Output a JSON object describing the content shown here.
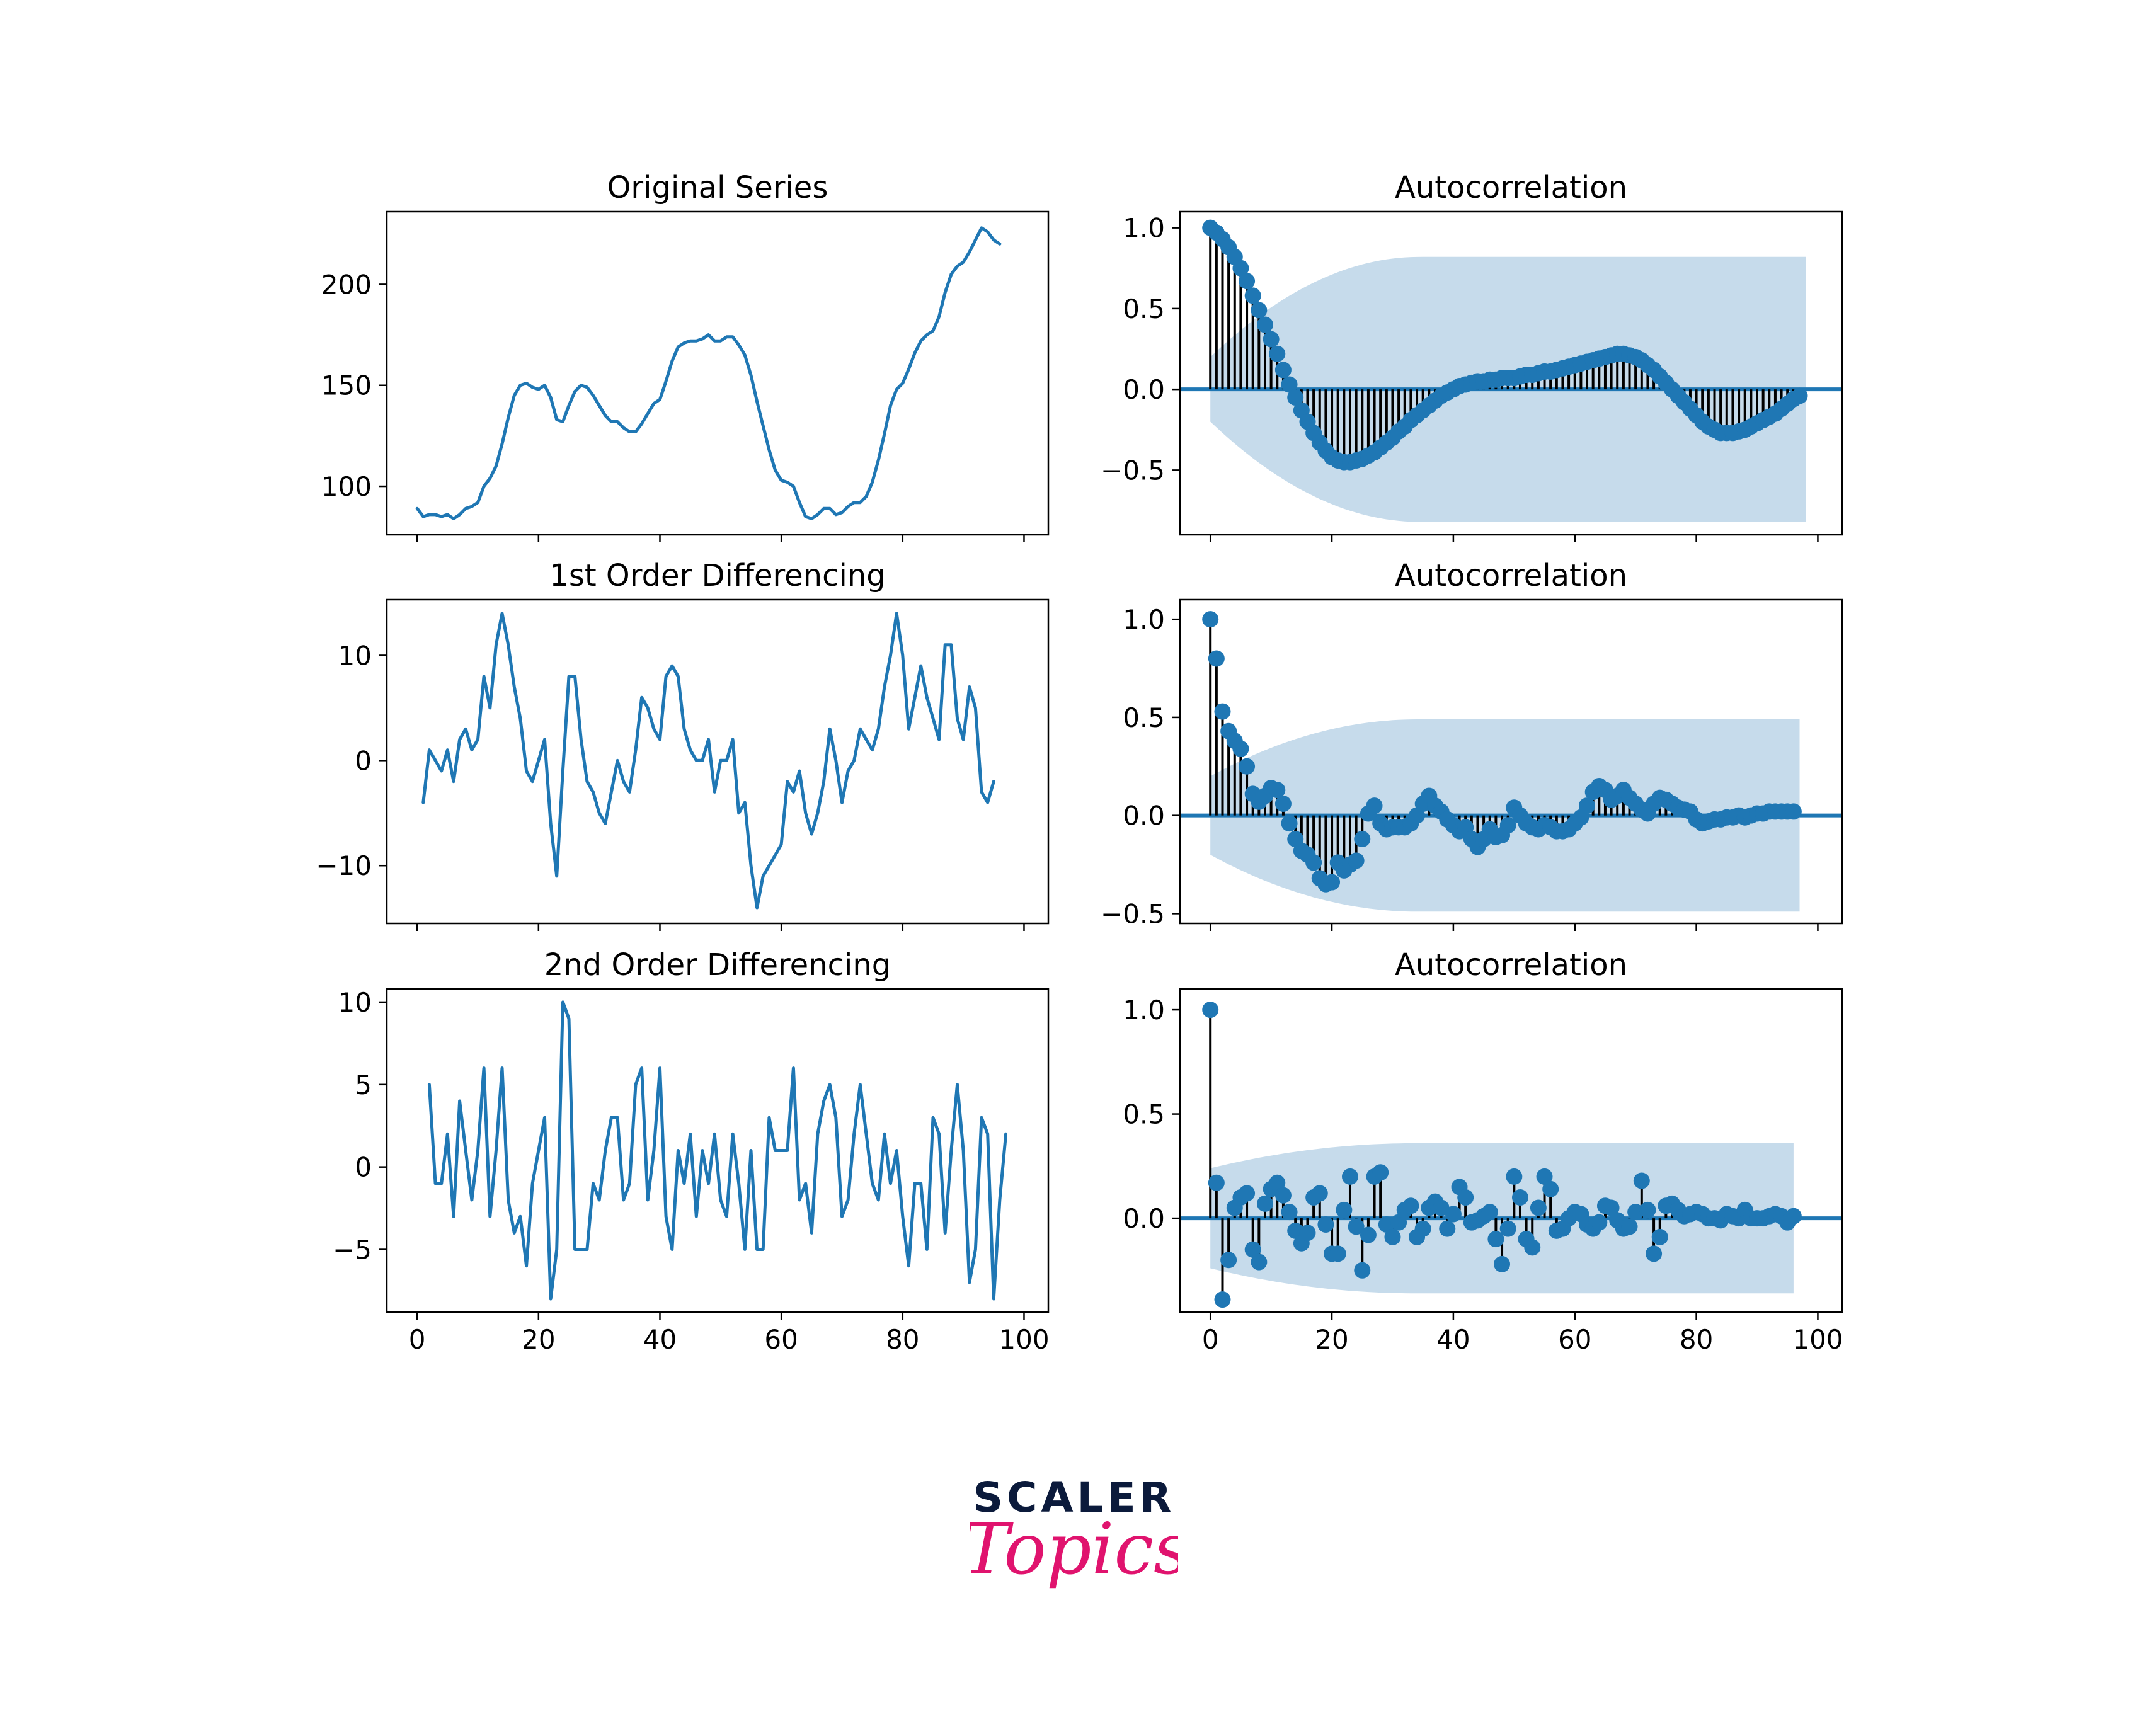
{
  "chart_data": [
    {
      "type": "line",
      "title": "Original Series",
      "xlim": [
        -5,
        104
      ],
      "ylim": [
        76,
        236
      ],
      "xticks": [
        0,
        20,
        40,
        60,
        80,
        100
      ],
      "yticks": [
        100,
        150,
        200
      ],
      "ytick_labels": [
        "100",
        "150",
        "200"
      ],
      "show_xtick_labels": false,
      "color": "#1f77b4",
      "x_start": 0,
      "values": [
        89,
        85,
        86,
        86,
        85,
        86,
        84,
        86,
        89,
        90,
        92,
        100,
        104,
        110,
        121,
        134,
        145,
        150,
        151,
        149,
        148,
        150,
        144,
        133,
        132,
        140,
        147,
        150,
        149,
        145,
        140,
        135,
        132,
        132,
        129,
        127,
        127,
        131,
        136,
        141,
        143,
        152,
        162,
        169,
        171,
        172,
        172,
        173,
        175,
        172,
        172,
        174,
        174,
        170,
        165,
        155,
        142,
        130,
        118,
        108,
        103,
        102,
        100,
        92,
        85,
        84,
        86,
        89,
        89,
        86,
        87,
        90,
        92,
        92,
        95,
        102,
        113,
        126,
        140,
        148,
        151,
        158,
        166,
        172,
        175,
        177,
        184,
        196,
        205,
        209,
        211,
        216,
        222,
        228,
        226,
        222,
        220
      ]
    },
    {
      "type": "stem",
      "title": "Autocorrelation",
      "xlim": [
        -5,
        104
      ],
      "ylim": [
        -0.9,
        1.1
      ],
      "xticks": [
        0,
        20,
        40,
        60,
        80,
        100
      ],
      "yticks": [
        -0.5,
        0.0,
        0.5,
        1.0
      ],
      "ytick_labels": [
        "−0.5",
        "0.0",
        "0.5",
        "1.0"
      ],
      "show_xtick_labels": false,
      "color": "#1f77b4",
      "confidence_band": {
        "x_end": 98.5,
        "upper_start": 0.2,
        "upper_end": 0.82,
        "color": "#c6dbeb"
      },
      "values": [
        1.0,
        0.97,
        0.93,
        0.88,
        0.82,
        0.75,
        0.67,
        0.58,
        0.49,
        0.4,
        0.31,
        0.22,
        0.12,
        0.03,
        -0.05,
        -0.13,
        -0.2,
        -0.27,
        -0.33,
        -0.38,
        -0.42,
        -0.44,
        -0.45,
        -0.45,
        -0.44,
        -0.43,
        -0.41,
        -0.39,
        -0.36,
        -0.33,
        -0.3,
        -0.26,
        -0.23,
        -0.19,
        -0.16,
        -0.13,
        -0.1,
        -0.07,
        -0.04,
        -0.02,
        0.0,
        0.02,
        0.03,
        0.04,
        0.05,
        0.05,
        0.06,
        0.06,
        0.07,
        0.07,
        0.07,
        0.08,
        0.09,
        0.09,
        0.1,
        0.11,
        0.11,
        0.12,
        0.13,
        0.14,
        0.15,
        0.16,
        0.17,
        0.18,
        0.19,
        0.2,
        0.21,
        0.22,
        0.22,
        0.21,
        0.2,
        0.18,
        0.15,
        0.12,
        0.08,
        0.04,
        0.0,
        -0.04,
        -0.08,
        -0.12,
        -0.16,
        -0.2,
        -0.23,
        -0.25,
        -0.27,
        -0.27,
        -0.27,
        -0.26,
        -0.25,
        -0.23,
        -0.21,
        -0.19,
        -0.17,
        -0.15,
        -0.12,
        -0.09,
        -0.06,
        -0.04
      ]
    },
    {
      "type": "line",
      "title": "1st Order Differencing",
      "xlim": [
        -5,
        104
      ],
      "ylim": [
        -15.5,
        15.3
      ],
      "xticks": [
        0,
        20,
        40,
        60,
        80,
        100
      ],
      "yticks": [
        -10,
        0,
        10
      ],
      "ytick_labels": [
        "−10",
        "0",
        "10"
      ],
      "show_xtick_labels": false,
      "color": "#1f77b4",
      "x_start": 1,
      "values": [
        -4,
        1,
        0,
        -1,
        1,
        -2,
        2,
        3,
        1,
        2,
        8,
        5,
        11,
        14,
        11,
        7,
        4,
        -1,
        -2,
        0,
        2,
        -6,
        -11,
        -1,
        8,
        8,
        2,
        -2,
        -3,
        -5,
        -6,
        -3,
        0,
        -2,
        -3,
        1,
        6,
        5,
        3,
        2,
        8,
        9,
        8,
        3,
        1,
        0,
        0,
        2,
        -3,
        0,
        0,
        2,
        -5,
        -4,
        -10,
        -14,
        -11,
        -10,
        -9,
        -8,
        -2,
        -3,
        -1,
        -5,
        -7,
        -5,
        -2,
        3,
        0,
        -4,
        -1,
        0,
        3,
        2,
        1,
        3,
        7,
        10,
        14,
        10,
        3,
        6,
        9,
        6,
        4,
        2,
        11,
        11,
        4,
        2,
        7,
        5,
        -3,
        -4,
        -2
      ]
    },
    {
      "type": "stem",
      "title": "Autocorrelation",
      "xlim": [
        -5,
        104
      ],
      "ylim": [
        -0.55,
        1.1
      ],
      "xticks": [
        0,
        20,
        40,
        60,
        80,
        100
      ],
      "yticks": [
        -0.5,
        0.0,
        0.5,
        1.0
      ],
      "ytick_labels": [
        "−0.5",
        "0.0",
        "0.5",
        "1.0"
      ],
      "show_xtick_labels": false,
      "color": "#1f77b4",
      "confidence_band": {
        "x_end": 97.5,
        "upper_start": 0.2,
        "upper_end": 0.49,
        "color": "#c6dbeb"
      },
      "values": [
        1.0,
        0.8,
        0.53,
        0.43,
        0.38,
        0.34,
        0.25,
        0.11,
        0.07,
        0.1,
        0.14,
        0.13,
        0.06,
        -0.04,
        -0.12,
        -0.18,
        -0.2,
        -0.24,
        -0.32,
        -0.35,
        -0.34,
        -0.24,
        -0.28,
        -0.25,
        -0.23,
        -0.12,
        0.01,
        0.05,
        -0.04,
        -0.07,
        -0.06,
        -0.06,
        -0.06,
        -0.04,
        0.0,
        0.06,
        0.1,
        0.05,
        0.02,
        -0.02,
        -0.05,
        -0.08,
        -0.06,
        -0.12,
        -0.16,
        -0.12,
        -0.07,
        -0.11,
        -0.1,
        -0.05,
        0.04,
        0.0,
        -0.04,
        -0.06,
        -0.07,
        -0.05,
        -0.06,
        -0.08,
        -0.08,
        -0.07,
        -0.04,
        -0.01,
        0.05,
        0.12,
        0.15,
        0.13,
        0.08,
        0.1,
        0.13,
        0.09,
        0.06,
        0.03,
        0.01,
        0.06,
        0.09,
        0.08,
        0.06,
        0.04,
        0.03,
        0.02,
        -0.02,
        -0.04,
        -0.03,
        -0.02,
        -0.02,
        -0.01,
        -0.01,
        0.0,
        -0.01,
        0.0,
        0.01,
        0.01,
        0.02,
        0.02,
        0.02,
        0.02,
        0.02
      ]
    },
    {
      "type": "line",
      "title": "2nd Order Differencing",
      "xlim": [
        -5,
        104
      ],
      "ylim": [
        -8.8,
        10.8
      ],
      "xticks": [
        0,
        20,
        40,
        60,
        80,
        100
      ],
      "yticks": [
        -5,
        0,
        5,
        10
      ],
      "ytick_labels": [
        "−5",
        "0",
        "5",
        "10"
      ],
      "show_xtick_labels": true,
      "xtick_labels": [
        "0",
        "20",
        "40",
        "60",
        "80",
        "100"
      ],
      "color": "#1f77b4",
      "x_start": 2,
      "values": [
        5,
        -1,
        -1,
        2,
        -3,
        4,
        1,
        -2,
        1,
        6,
        -3,
        1,
        6,
        -2,
        -4,
        -3,
        -6,
        -1,
        1,
        3,
        -8,
        -5,
        10,
        9,
        -5,
        -5,
        -5,
        -1,
        -2,
        1,
        3,
        3,
        -2,
        -1,
        5,
        6,
        -2,
        1,
        6,
        -3,
        -5,
        1,
        -1,
        2,
        -3,
        1,
        -1,
        2,
        -2,
        -3,
        2,
        -1,
        -5,
        1,
        -5,
        -5,
        3,
        1,
        1,
        1,
        6,
        -2,
        -1,
        -4,
        2,
        4,
        5,
        3,
        -3,
        -2,
        2,
        5,
        2,
        -1,
        -2,
        2,
        -1,
        1,
        -3,
        -6,
        -1,
        -1,
        -5,
        3,
        2,
        -4,
        1,
        5,
        1,
        -7,
        -5,
        3,
        2,
        -8,
        -2,
        2
      ]
    },
    {
      "type": "stem",
      "title": "Autocorrelation",
      "xlim": [
        -5,
        104
      ],
      "ylim": [
        -0.45,
        1.1
      ],
      "xticks": [
        0,
        20,
        40,
        60,
        80,
        100
      ],
      "yticks": [
        0.0,
        0.5,
        1.0
      ],
      "ytick_labels": [
        "0.0",
        "0.5",
        "1.0"
      ],
      "show_xtick_labels": true,
      "xtick_labels": [
        "0",
        "20",
        "40",
        "60",
        "80",
        "100"
      ],
      "color": "#1f77b4",
      "confidence_band": {
        "x_end": 96.5,
        "upper_start": 0.24,
        "upper_end": 0.36,
        "color": "#c6dbeb"
      },
      "values": [
        1.0,
        0.17,
        -0.39,
        -0.2,
        0.05,
        0.1,
        0.12,
        -0.15,
        -0.21,
        0.07,
        0.14,
        0.17,
        0.11,
        0.03,
        -0.06,
        -0.12,
        -0.07,
        0.1,
        0.12,
        -0.03,
        -0.17,
        -0.17,
        0.04,
        0.2,
        -0.04,
        -0.25,
        -0.08,
        0.2,
        0.22,
        -0.03,
        -0.09,
        -0.02,
        0.04,
        0.06,
        -0.09,
        -0.05,
        0.05,
        0.08,
        0.05,
        -0.05,
        0.02,
        0.15,
        0.1,
        -0.02,
        -0.01,
        0.01,
        0.03,
        -0.1,
        -0.22,
        -0.05,
        0.2,
        0.1,
        -0.1,
        -0.14,
        0.05,
        0.2,
        0.14,
        -0.06,
        -0.05,
        0.0,
        0.03,
        0.02,
        -0.03,
        -0.05,
        -0.02,
        0.06,
        0.05,
        -0.01,
        -0.05,
        -0.04,
        0.03,
        0.18,
        0.04,
        -0.17,
        -0.09,
        0.06,
        0.07,
        0.04,
        0.01,
        0.02,
        0.03,
        0.02,
        0.0,
        0.0,
        -0.01,
        0.02,
        0.01,
        0.0,
        0.04,
        0.0,
        0.0,
        0.0,
        0.01,
        0.02,
        0.01,
        -0.02,
        0.01
      ]
    }
  ],
  "logo": {
    "line1": "SCALER",
    "line2": "Topics",
    "line1_color": "#0b1a3b",
    "line2_color": "#e0136e"
  }
}
